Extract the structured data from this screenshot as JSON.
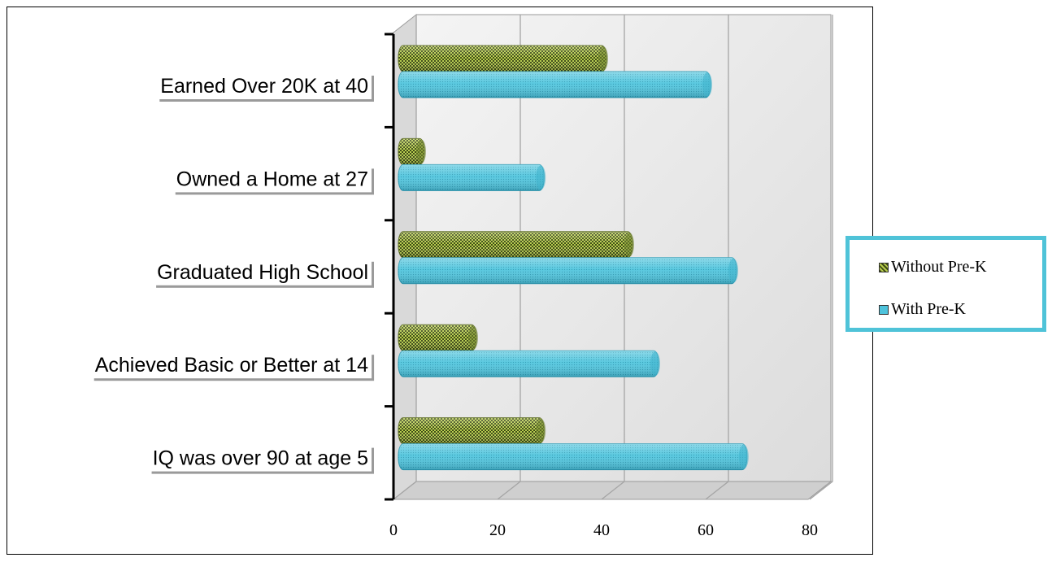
{
  "chart_data": {
    "type": "bar",
    "orientation": "horizontal",
    "categories": [
      "Earned Over 20K at 40",
      "Owned a Home at 27",
      "Graduated High School",
      "Achieved Basic or Better at 14",
      "IQ was over 90 at age 5"
    ],
    "series": [
      {
        "name": "Without Pre-K",
        "values": [
          40,
          5,
          45,
          15,
          28
        ],
        "color": "#8fa640"
      },
      {
        "name": "With Pre-K",
        "values": [
          60,
          28,
          65,
          50,
          67
        ],
        "color": "#4ec3dc"
      }
    ],
    "xlim": [
      0,
      80
    ],
    "xticks": [
      "0",
      "20",
      "40",
      "60",
      "80"
    ],
    "grid": true,
    "legend_position": "right"
  }
}
